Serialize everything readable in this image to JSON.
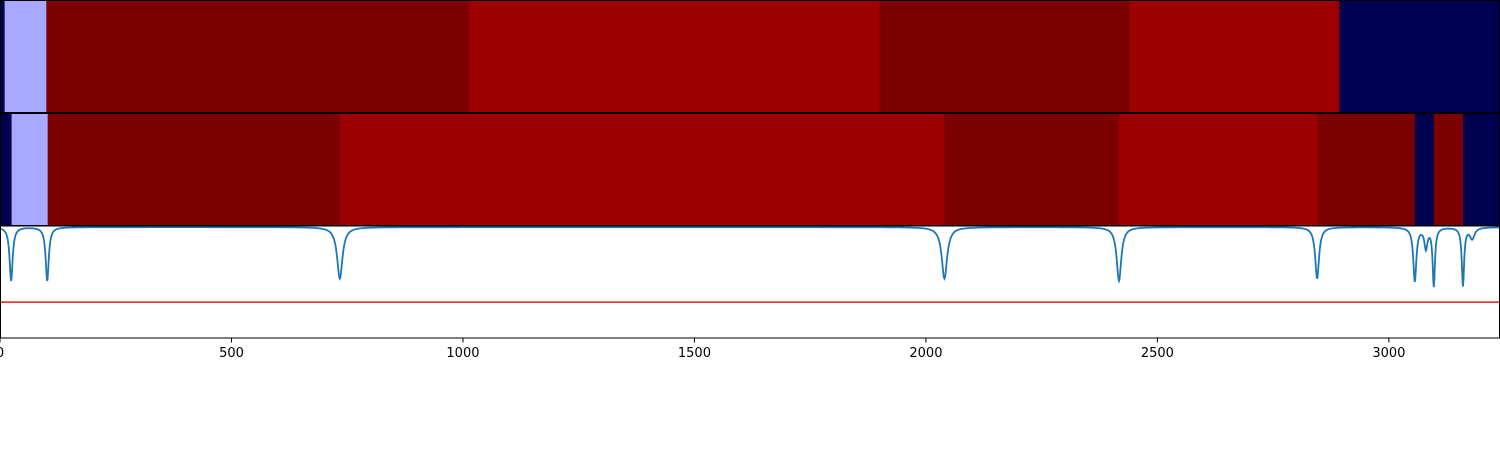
{
  "chart_data": {
    "type": "heatmap",
    "xlim": [
      0,
      3240
    ],
    "xticks": [
      0,
      500,
      1000,
      1500,
      2000,
      2500,
      3000
    ],
    "tick_labels": [
      "0",
      "500",
      "1000",
      "1500",
      "2000",
      "2500",
      "3000"
    ],
    "colors": {
      "light_blue": "#a8a8ff",
      "navy": "#000050",
      "dark_red": "#7d0000",
      "red": "#9c0000",
      "line": "#1f77b4",
      "threshold": "#e41a1c"
    },
    "rows": [
      {
        "segments": [
          {
            "start": 0,
            "end": 10,
            "color": "navy"
          },
          {
            "start": 10,
            "end": 100,
            "color": "light_blue"
          },
          {
            "start": 100,
            "end": 1013,
            "color": "dark_red"
          },
          {
            "start": 1013,
            "end": 1900,
            "color": "red"
          },
          {
            "start": 1900,
            "end": 2440,
            "color": "dark_red"
          },
          {
            "start": 2440,
            "end": 2893,
            "color": "red"
          },
          {
            "start": 2893,
            "end": 3240,
            "color": "navy"
          }
        ]
      },
      {
        "segments": [
          {
            "start": 0,
            "end": 25,
            "color": "navy"
          },
          {
            "start": 25,
            "end": 103,
            "color": "light_blue"
          },
          {
            "start": 103,
            "end": 734,
            "color": "dark_red"
          },
          {
            "start": 734,
            "end": 2040,
            "color": "red"
          },
          {
            "start": 2040,
            "end": 2417,
            "color": "dark_red"
          },
          {
            "start": 2417,
            "end": 2845,
            "color": "red"
          },
          {
            "start": 2845,
            "end": 3056,
            "color": "dark_red"
          },
          {
            "start": 3056,
            "end": 3097,
            "color": "navy"
          },
          {
            "start": 3097,
            "end": 3160,
            "color": "dark_red"
          },
          {
            "start": 3160,
            "end": 3240,
            "color": "navy"
          }
        ]
      }
    ],
    "curve": {
      "ylim": [
        0,
        1
      ],
      "threshold": 0.32,
      "baseline": 0.99,
      "dips": [
        {
          "x": 24,
          "depth": 0.48,
          "width": 4
        },
        {
          "x": 102,
          "depth": 0.48,
          "width": 4
        },
        {
          "x": 734,
          "depth": 0.46,
          "width": 7
        },
        {
          "x": 2040,
          "depth": 0.46,
          "width": 7
        },
        {
          "x": 2417,
          "depth": 0.48,
          "width": 6
        },
        {
          "x": 2845,
          "depth": 0.46,
          "width": 5
        },
        {
          "x": 3056,
          "depth": 0.48,
          "width": 4
        },
        {
          "x": 3080,
          "depth": 0.18,
          "width": 4
        },
        {
          "x": 3097,
          "depth": 0.52,
          "width": 3
        },
        {
          "x": 3160,
          "depth": 0.52,
          "width": 3
        },
        {
          "x": 3180,
          "depth": 0.1,
          "width": 6
        }
      ]
    }
  }
}
